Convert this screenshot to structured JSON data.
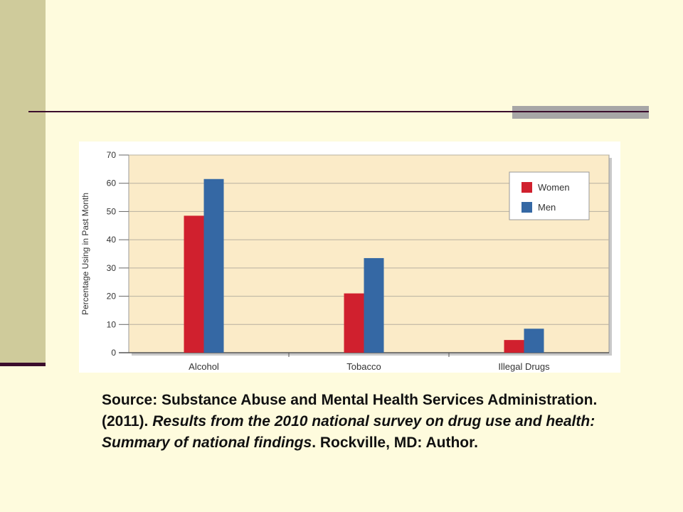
{
  "chart_data": {
    "type": "bar",
    "categories": [
      "Alcohol",
      "Tobacco",
      "Illegal Drugs"
    ],
    "series": [
      {
        "name": "Women",
        "values": [
          48.5,
          21,
          4.5
        ]
      },
      {
        "name": "Men",
        "values": [
          61.5,
          33.5,
          8.5
        ]
      }
    ],
    "title": "",
    "xlabel": "",
    "ylabel": "Percentage Using in Past Month",
    "ylim": [
      0,
      70
    ],
    "yticks": [
      "0",
      "10",
      "20",
      "30",
      "40",
      "50",
      "60",
      "70"
    ],
    "grid": true,
    "legend": "top-right",
    "colors": {
      "Women": "#d0202e",
      "Men": "#3568a4"
    }
  },
  "source": {
    "part1": "Source: Substance Abuse and Mental Health Services Administration. (2011). ",
    "title_italic": "Results from the 2010 national survey on drug use and health: Summary of national findings",
    "part2": ". Rockville, MD: Author."
  }
}
